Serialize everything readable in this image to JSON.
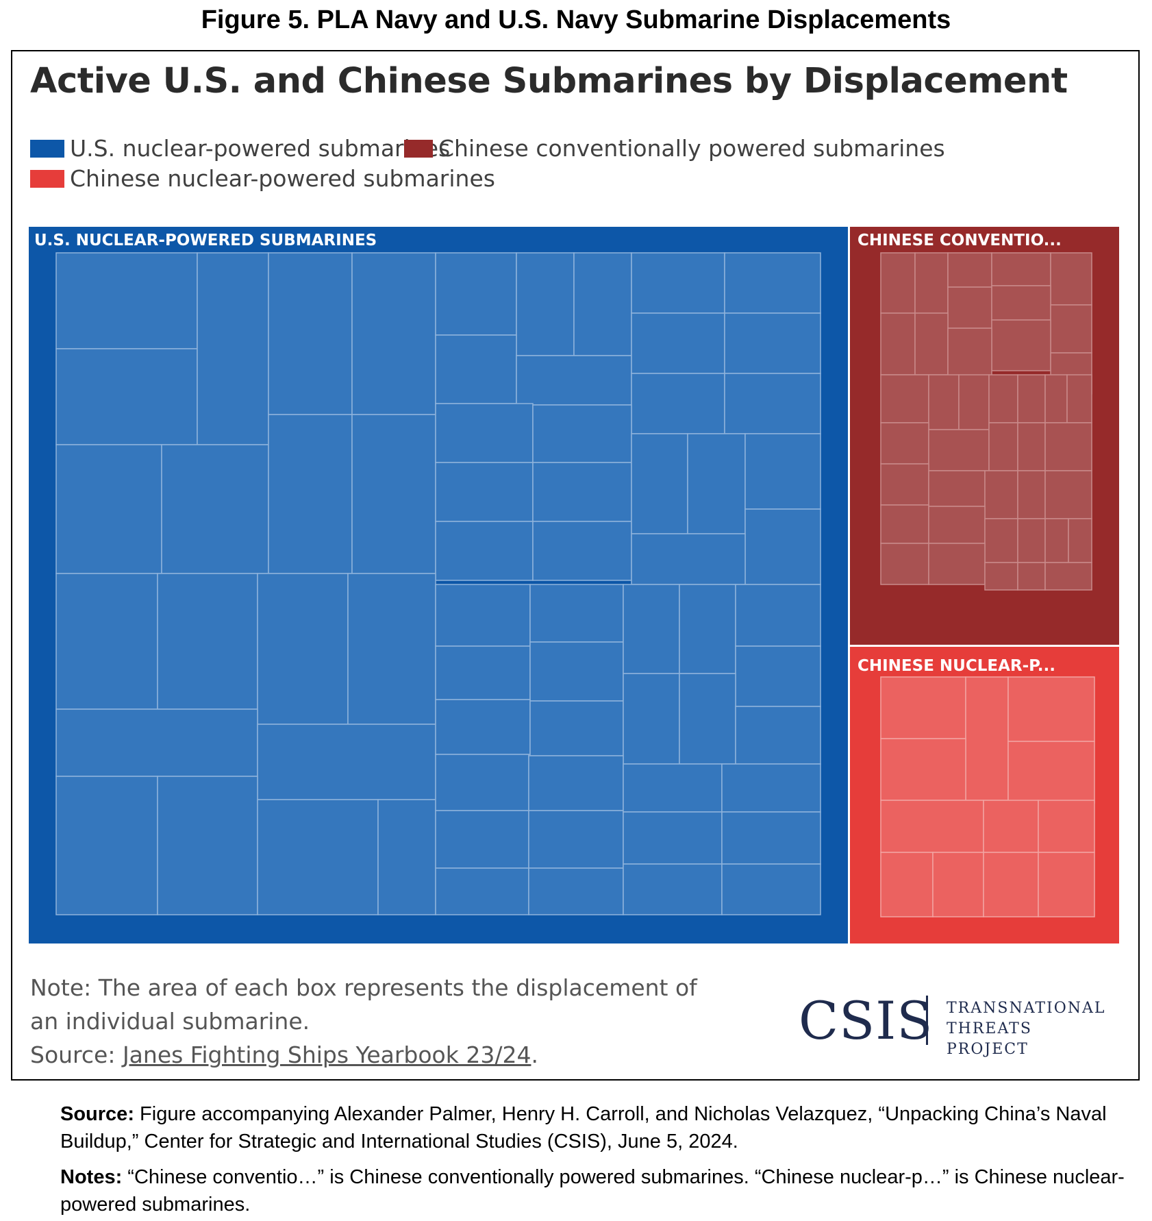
{
  "figure_title": "Figure 5. PLA Navy and U.S. Navy Submarine Displacements",
  "colors": {
    "us_nuclear": "#0d57a8",
    "us_nuclear_cell": "#3577bd",
    "cn_conventional": "#962a2a",
    "cn_conventional_cell": "#a85252",
    "cn_nuclear": "#e63d3a",
    "cn_nuclear_cell": "#eb6260",
    "cell_border": "#8fb3db"
  },
  "chart_data": {
    "type": "treemap",
    "title": "Active U.S. and Chinese Submarines by Displacement",
    "legend": [
      {
        "name": "U.S. nuclear-powered submarines",
        "color": "#0d57a8"
      },
      {
        "name": "Chinese conventionally powered submarines",
        "color": "#962a2a"
      },
      {
        "name": "Chinese nuclear-powered submarines",
        "color": "#e63d3a"
      }
    ],
    "groups": [
      {
        "name": "U.S. nuclear-powered submarines",
        "label": "U.S. NUCLEAR-POWERED SUBMARINES",
        "relative_area": 0.75
      },
      {
        "name": "Chinese conventionally powered submarines",
        "label": "CHINESE CONVENTIO...",
        "relative_area": 0.15
      },
      {
        "name": "Chinese nuclear-powered submarines",
        "label": "CHINESE NUCLEAR-P...",
        "relative_area": 0.1
      }
    ],
    "note": "Note: The area of each box represents the displacement of an individual submarine.",
    "source_prefix": "Source: ",
    "source_link": "Janes Fighting Ships Yearbook 23/24",
    "source_suffix": "."
  },
  "logo": {
    "name": "CSIS",
    "line1": "TRANSNATIONAL",
    "line2": "THREATS PROJECT"
  },
  "footer": {
    "source_label": "Source:",
    "source_text": " Figure accompanying Alexander Palmer, Henry H. Carroll, and Nicholas Velazquez, “Unpacking China’s Naval Buildup,” Center for Strategic and International Studies (CSIS), June 5, 2024.",
    "notes_label": "Notes:",
    "notes_text": " “Chinese conventio…” is Chinese conventionally powered submarines. “Chinese nuclear-p…” is Chinese nuclear-powered submarines."
  }
}
